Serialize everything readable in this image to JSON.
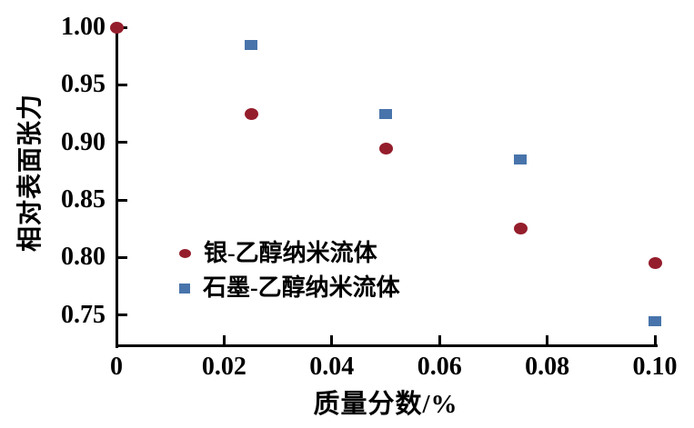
{
  "figure": {
    "background": "#ffffff",
    "axis_color": "#000000",
    "text_color": "#000000"
  },
  "chart_data": {
    "type": "scatter",
    "title": "",
    "xlabel": "质量分数/%",
    "ylabel": "相对表面张力",
    "xlim": [
      0,
      0.1
    ],
    "ylim": [
      0.723,
      1.0
    ],
    "grid": false,
    "legend_position": "inside lower-left",
    "x_ticks": {
      "values": [
        0,
        0.02,
        0.04,
        0.06,
        0.08,
        0.1
      ],
      "labels": [
        "0",
        "0.02",
        "0.04",
        "0.06",
        "0.08",
        "0.10"
      ]
    },
    "y_ticks": {
      "values": [
        1.0,
        0.95,
        0.9,
        0.85,
        0.8,
        0.75
      ],
      "labels": [
        "1.00",
        "0.95",
        "0.90",
        "0.85",
        "0.80",
        "0.75"
      ]
    },
    "series": [
      {
        "name": "银-乙醇纳米流体",
        "marker": "circle",
        "color": "#951e2c",
        "points": [
          [
            0,
            1.0
          ],
          [
            0.025,
            0.925
          ],
          [
            0.05,
            0.895
          ],
          [
            0.075,
            0.825
          ],
          [
            0.1,
            0.795
          ]
        ]
      },
      {
        "name": "石墨-乙醇纳米流体",
        "marker": "square",
        "color": "#4874ab",
        "points": [
          [
            0.025,
            0.985
          ],
          [
            0.05,
            0.925
          ],
          [
            0.075,
            0.885
          ],
          [
            0.1,
            0.745
          ]
        ]
      }
    ]
  }
}
